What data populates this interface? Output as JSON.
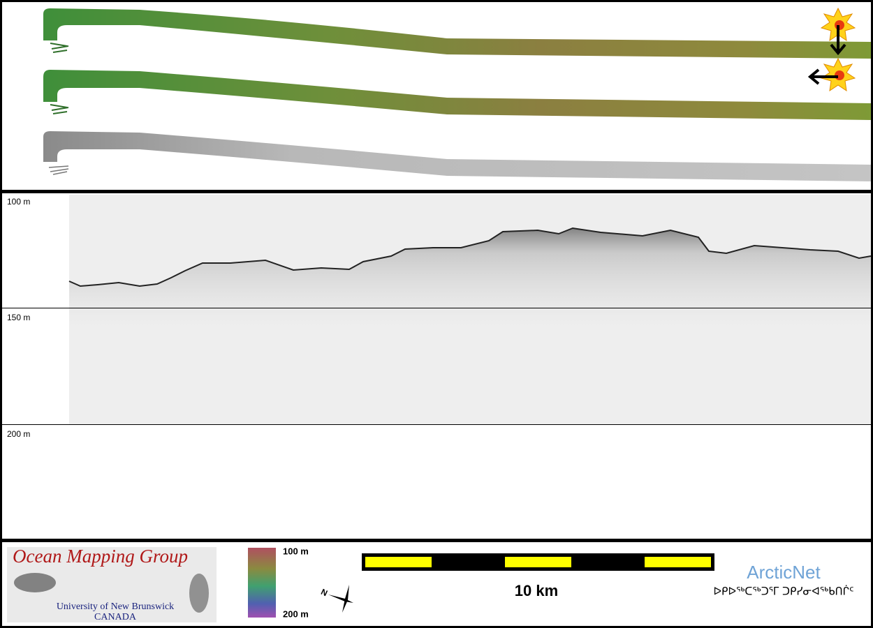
{
  "depth_labels": [
    "100 m",
    "150 m",
    "200 m"
  ],
  "colorbar": {
    "top": "100 m",
    "bottom": "200 m"
  },
  "scale_bar": "10 km",
  "logo": {
    "title": "Ocean Mapping Group",
    "university": "University of New Brunswick",
    "country": "CANADA"
  },
  "arcticnet": {
    "name": "ArcticNet",
    "syllabics": "ᐅᑭᐅᖅᑕᖅᑐᕐᒥ ᑐᑭᓯᓂᐊᖅᑲᑎᒌᑦ"
  }
}
